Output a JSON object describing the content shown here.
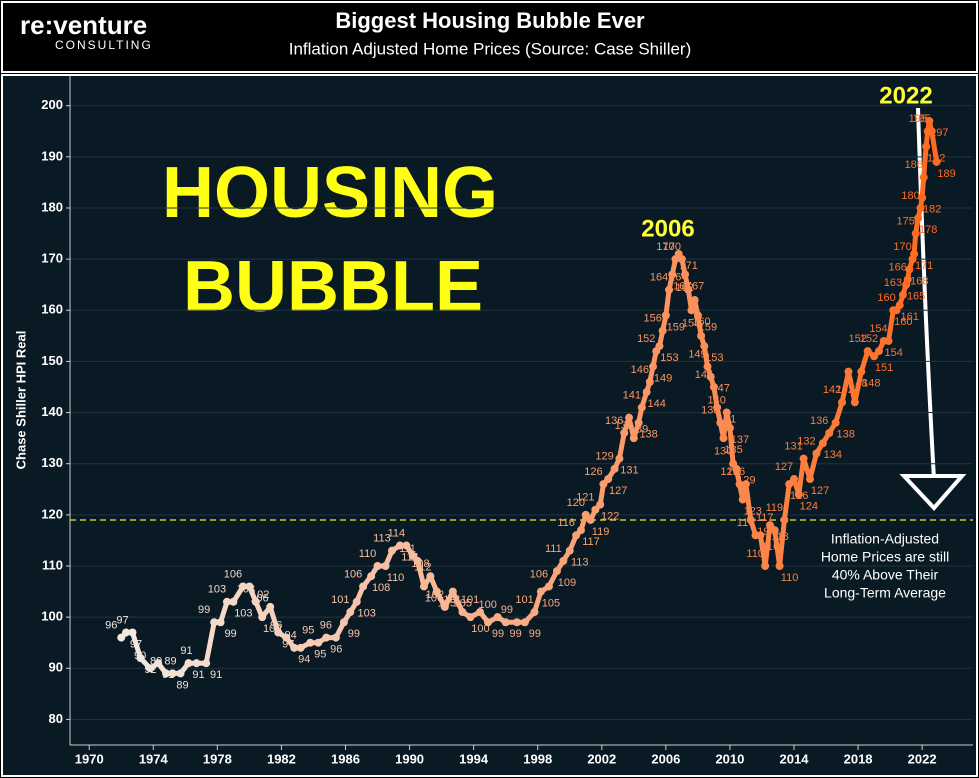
{
  "logo": {
    "name": "re:venture",
    "tagline": "CONSULTING"
  },
  "chart_data": {
    "type": "line",
    "title": "Biggest Housing Bubble Ever",
    "subtitle": "Inflation Adjusted Home Prices (Source: Case Shiller)",
    "y_label": "Chase Shiller  HPI Real",
    "annotations": {
      "headline": [
        "HOUSING",
        "BUBBLE"
      ],
      "peak_2006": "2006",
      "peak_2022": "2022",
      "note": [
        "Inflation-Adjusted",
        "Home  Prices are still",
        "40% Above Their",
        "Long-Term Average"
      ]
    },
    "reference_line": 119,
    "gradient": [
      "#f3e9e1",
      "#ff6a1f"
    ],
    "grid": true,
    "xlim": [
      1968.8,
      2025.3
    ],
    "xticks": [
      1970,
      1974,
      1978,
      1982,
      1986,
      1990,
      1994,
      1998,
      2002,
      2006,
      2010,
      2014,
      2018,
      2022
    ],
    "ylim": [
      75,
      206
    ],
    "yticks": [
      80,
      90,
      100,
      110,
      120,
      130,
      140,
      150,
      160,
      170,
      180,
      190,
      200
    ],
    "series": [
      {
        "name": "HPI Real",
        "x": [
          1972.0,
          1972.3,
          1972.7,
          1973.2,
          1973.8,
          1974.3,
          1974.8,
          1975.2,
          1975.7,
          1976.2,
          1976.7,
          1977.3,
          1977.8,
          1978.2,
          1978.6,
          1979.0,
          1979.6,
          1980.0,
          1980.4,
          1980.8,
          1981.3,
          1981.8,
          1982.3,
          1982.8,
          1983.2,
          1983.8,
          1984.3,
          1984.8,
          1985.4,
          1985.9,
          1986.3,
          1986.7,
          1987.1,
          1987.6,
          1988.0,
          1988.5,
          1988.9,
          1989.4,
          1989.8,
          1990.2,
          1990.5,
          1990.9,
          1991.3,
          1991.7,
          1992.2,
          1992.7,
          1993.3,
          1993.8,
          1994.4,
          1994.9,
          1995.5,
          1996.0,
          1996.7,
          1997.2,
          1997.8,
          1998.2,
          1998.7,
          1999.2,
          1999.6,
          2000.0,
          2000.4,
          2000.7,
          2001.0,
          2001.3,
          2001.6,
          2001.9,
          2002.1,
          2002.4,
          2002.8,
          2003.1,
          2003.4,
          2003.7,
          2004.0,
          2004.3,
          2004.5,
          2004.8,
          2005.0,
          2005.2,
          2005.4,
          2005.6,
          2005.8,
          2006.0,
          2006.2,
          2006.4,
          2006.6,
          2006.8,
          2007.0,
          2007.2,
          2007.4,
          2007.6,
          2007.8,
          2008.0,
          2008.2,
          2008.4,
          2008.6,
          2008.8,
          2009.0,
          2009.2,
          2009.4,
          2009.6,
          2009.8,
          2010.0,
          2010.2,
          2010.4,
          2010.6,
          2010.8,
          2011.0,
          2011.3,
          2011.6,
          2011.9,
          2012.2,
          2012.5,
          2012.8,
          2013.1,
          2013.4,
          2013.7,
          2014.0,
          2014.3,
          2014.6,
          2015.0,
          2015.4,
          2015.8,
          2016.2,
          2016.6,
          2017.0,
          2017.4,
          2017.8,
          2018.2,
          2018.6,
          2019.0,
          2019.3,
          2019.6,
          2019.9,
          2020.2,
          2020.4,
          2020.6,
          2020.8,
          2021.0,
          2021.1,
          2021.2,
          2021.4,
          2021.5,
          2021.6,
          2021.75,
          2021.9,
          2022.0,
          2022.1,
          2022.25,
          2022.35,
          2022.45,
          2022.6,
          2022.9
        ],
        "values": [
          96,
          97,
          97,
          92,
          90,
          91,
          89,
          89,
          89,
          91,
          91,
          91,
          99,
          99,
          103,
          103,
          106,
          106,
          103,
          100,
          102,
          97,
          96,
          94,
          94,
          95,
          95,
          96,
          96,
          99,
          101,
          103,
          106,
          108,
          110,
          110,
          113,
          114,
          114,
          112,
          111,
          106,
          108,
          105,
          102,
          105,
          101,
          100,
          101,
          99,
          100,
          99,
          99,
          99,
          101,
          105,
          106,
          109,
          111,
          113,
          116,
          117,
          120,
          119,
          121,
          122,
          126,
          127,
          129,
          131,
          136,
          139,
          135,
          138,
          141,
          144,
          146,
          149,
          152,
          153,
          156,
          159,
          164,
          167,
          170,
          171,
          170,
          167,
          164,
          160,
          162,
          159,
          155,
          153,
          149,
          147,
          145,
          141,
          138,
          135,
          140,
          137,
          130,
          129,
          126,
          123,
          126,
          119,
          116,
          116,
          110,
          118,
          117,
          110,
          119,
          126,
          127,
          124,
          131,
          127,
          132,
          134,
          136,
          138,
          142,
          148,
          142,
          148,
          152,
          151,
          152,
          154,
          154,
          160,
          160,
          161,
          163,
          165,
          166,
          168,
          170,
          171,
          175,
          178,
          180,
          182,
          186,
          192,
          195,
          197,
          195,
          189
        ]
      }
    ]
  }
}
